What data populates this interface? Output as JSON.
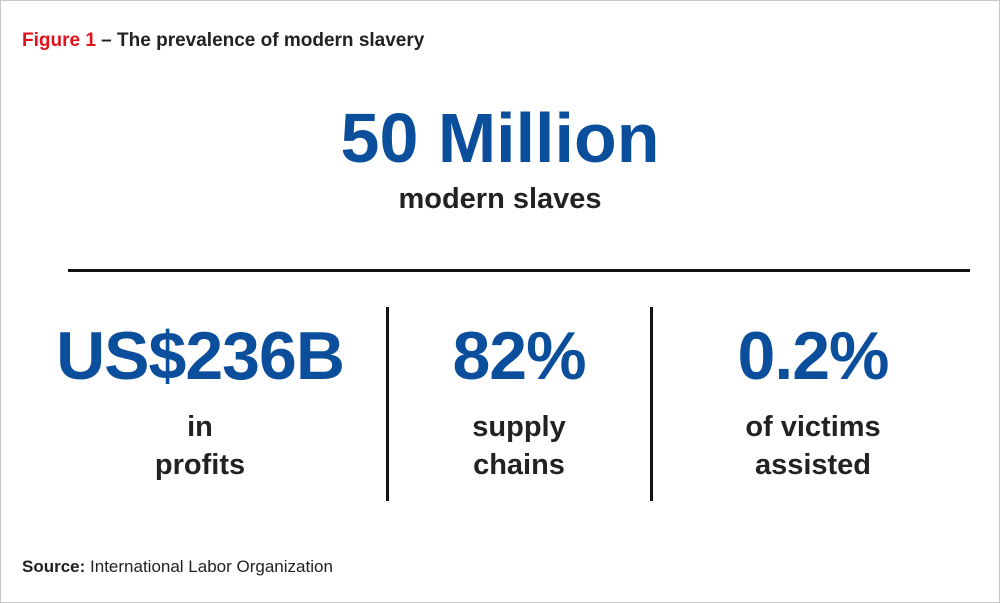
{
  "figure": {
    "label": "Figure 1",
    "title": " – The prevalence of modern slavery"
  },
  "headline": {
    "value": "50 Million",
    "caption": "modern slaves"
  },
  "stats": [
    {
      "value": "US$236B",
      "caption_line1": "in",
      "caption_line2": "profits"
    },
    {
      "value": "82%",
      "caption_line1": "supply",
      "caption_line2": "chains"
    },
    {
      "value": "0.2%",
      "caption_line1": "of victims",
      "caption_line2": "assisted"
    }
  ],
  "source": {
    "label": "Source:",
    "text": " International Labor Organization"
  },
  "colors": {
    "accent_blue": "#0b4e9b",
    "label_red": "#e0121b",
    "text_dark": "#222222"
  }
}
